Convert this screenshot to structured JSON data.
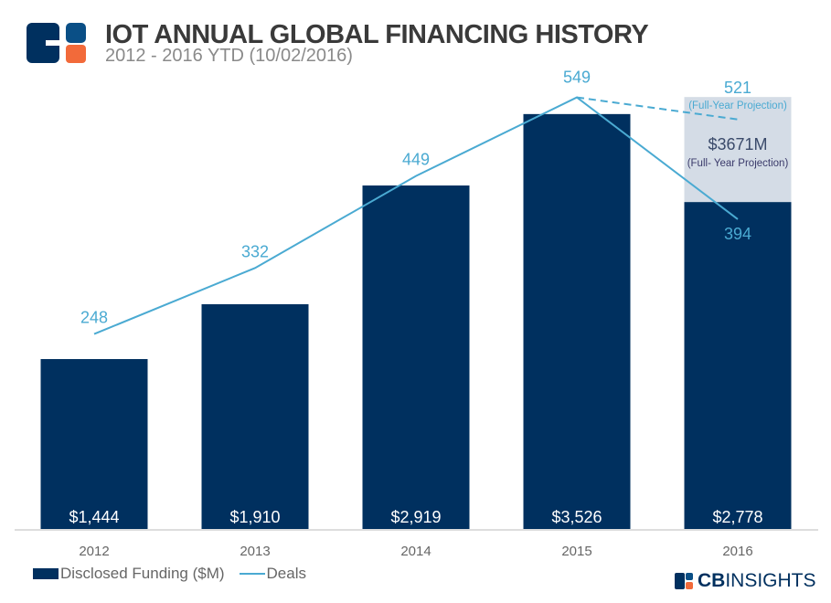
{
  "header": {
    "title": "IOT ANNUAL GLOBAL FINANCING HISTORY",
    "subtitle": "2012 - 2016 YTD (10/02/2016)"
  },
  "brand": {
    "bold": "CB",
    "rest": "INSIGHTS"
  },
  "colors": {
    "bar": "#00305f",
    "projection": "#d4dce6",
    "line": "#4aaad2",
    "logo_blue": "#0a4f86",
    "logo_orange": "#f26a3a"
  },
  "chart_data": {
    "type": "bar",
    "categories": [
      "2012",
      "2013",
      "2014",
      "2015",
      "2016"
    ],
    "series": [
      {
        "name": "Disclosed Funding ($M)",
        "type": "bar",
        "values": [
          1444,
          1910,
          2919,
          3526,
          2778
        ],
        "labels": [
          "$1,444",
          "$1,910",
          "$2,919",
          "$3,526",
          "$2,778"
        ]
      },
      {
        "name": "Deals",
        "type": "line",
        "values": [
          248,
          332,
          449,
          549,
          394
        ]
      }
    ],
    "projection": {
      "funding_label": "$3671M",
      "funding_note": "(Full- Year Projection)",
      "funding_value": 3671,
      "deals_value": 521,
      "deals_label": "521",
      "deals_note": "(Full-Year Projection)"
    },
    "legend": "bottom-left",
    "grid": false
  }
}
